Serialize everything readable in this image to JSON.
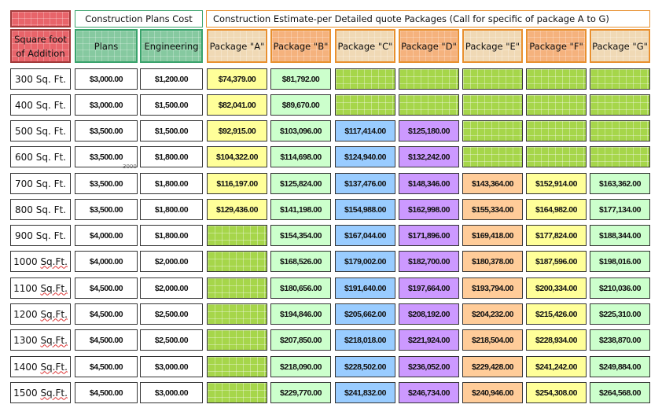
{
  "headers": {
    "square_foot": [
      "Square foot",
      "of Addition"
    ],
    "plans_group": "Construction Plans Cost",
    "estimate_group": "Construction  Estimate-per Detailed quote Packages (Call for specific of package A to G)",
    "plans": "Plans",
    "engineering": "Engineering",
    "packages": [
      "Package \"A\"",
      "Package \"B\"",
      "Package \"C\"",
      "Package \"D\"",
      "Package \"E\"",
      "Package \"F\"",
      "Package \"G\""
    ]
  },
  "colors": {
    "sqft_header": "#e8646a",
    "plans_header": "#86c9a0",
    "package_header_a": "#f0d9b5",
    "package_header_b": "#f5b27d",
    "pkg_a": "#ffff99",
    "pkg_b": "#ccffcc",
    "pkg_c": "#99ccff",
    "pkg_d": "#cc99ff",
    "pkg_e": "#ffcc99",
    "pkg_f": "#ffff99",
    "pkg_g": "#ccffcc",
    "empty": "#a6d64a"
  },
  "stray_mark": "3000",
  "rows": [
    {
      "sqft": "300 Sq. Ft.",
      "plans": "$3,000.00",
      "engineering": "$1,200.00",
      "packages": [
        "$74,379.00",
        "$81,792.00",
        "",
        "",
        "",
        "",
        ""
      ]
    },
    {
      "sqft": "400 Sq. Ft.",
      "plans": "$3,000.00",
      "engineering": "$1,500.00",
      "packages": [
        "$82,041.00",
        "$89,670.00",
        "",
        "",
        "",
        "",
        ""
      ]
    },
    {
      "sqft": "500 Sq. Ft.",
      "plans": "$3,500.00",
      "engineering": "$1,500.00",
      "packages": [
        "$92,915.00",
        "$103,096.00",
        "$117,414.00",
        "$125,180.00",
        "",
        "",
        ""
      ]
    },
    {
      "sqft": "600 Sq. Ft.",
      "plans": "$3,500.00",
      "engineering": "$1,800.00",
      "packages": [
        "$104,322.00",
        "$114,698.00",
        "$124,940.00",
        "$132,242.00",
        "",
        "",
        ""
      ]
    },
    {
      "sqft": "700 Sq. Ft.",
      "plans": "$3,500.00",
      "engineering": "$1,800.00",
      "packages": [
        "$116,197.00",
        "$125,824.00",
        "$137,476.00",
        "$148,346.00",
        "$143,364.00",
        "$152,914.00",
        "$163,362.00"
      ]
    },
    {
      "sqft": "800 Sq. Ft.",
      "plans": "$3,500.00",
      "engineering": "$1,800.00",
      "packages": [
        "$129,436.00",
        "$141,198.00",
        "$154,988.00",
        "$162,998.00",
        "$155,334.00",
        "$164,982.00",
        "$177,134.00"
      ]
    },
    {
      "sqft": "900 Sq. Ft.",
      "plans": "$4,000.00",
      "engineering": "$1,800.00",
      "packages": [
        "",
        "$154,354.00",
        "$167,044.00",
        "$171,896.00",
        "$169,418.00",
        "$177,824.00",
        "$188,344.00"
      ]
    },
    {
      "sqft": "1000 Sq.Ft.",
      "plans": "$4,000.00",
      "engineering": "$2,000.00",
      "packages": [
        "",
        "$168,526.00",
        "$179,002.00",
        "$182,700.00",
        "$180,378.00",
        "$187,596.00",
        "$198,016.00"
      ]
    },
    {
      "sqft": "1100 Sq.Ft.",
      "plans": "$4,500.00",
      "engineering": "$2,000.00",
      "packages": [
        "",
        "$180,656.00",
        "$191,640.00",
        "$197,664.00",
        "$193,794.00",
        "$200,334.00",
        "$210,036.00"
      ]
    },
    {
      "sqft": "1200 Sq.Ft.",
      "plans": "$4,500.00",
      "engineering": "$2,500.00",
      "packages": [
        "",
        "$194,846.00",
        "$205,662.00",
        "$208,192.00",
        "$204,232.00",
        "$215,426.00",
        "$225,310.00"
      ]
    },
    {
      "sqft": "1300 Sq.Ft.",
      "plans": "$4,500.00",
      "engineering": "$2,500.00",
      "packages": [
        "",
        "$207,850.00",
        "$218,018.00",
        "$221,924.00",
        "$218,504.00",
        "$228,934.00",
        "$238,870.00"
      ]
    },
    {
      "sqft": "1400 Sq.Ft.",
      "plans": "$4,500.00",
      "engineering": "$3,000.00",
      "packages": [
        "",
        "$218,090.00",
        "$228,502.00",
        "$236,052.00",
        "$229,428.00",
        "$241,242.00",
        "$249,884.00"
      ]
    },
    {
      "sqft": "1500 Sq.Ft.",
      "plans": "$4,500.00",
      "engineering": "$3,000.00",
      "packages": [
        "",
        "$229,770.00",
        "$241,832.00",
        "$246,734.00",
        "$240,946.00",
        "$254,308.00",
        "$264,568.00"
      ]
    }
  ]
}
